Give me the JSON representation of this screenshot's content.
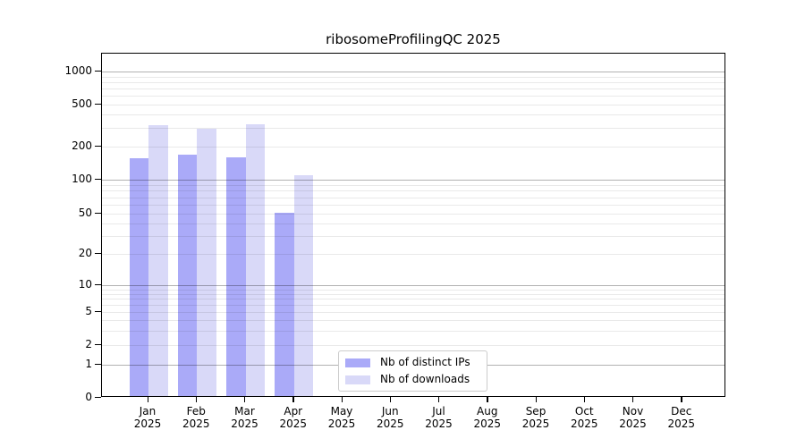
{
  "chart_data": {
    "type": "bar",
    "title": "ribosomeProfilingQC 2025",
    "categories": [
      "Jan",
      "Feb",
      "Mar",
      "Apr",
      "May",
      "Jun",
      "Jul",
      "Aug",
      "Sep",
      "Oct",
      "Nov",
      "Dec"
    ],
    "year_label": "2025",
    "series": [
      {
        "name": "Nb of distinct IPs",
        "color": "#aaaaf8",
        "values": [
          150,
          163,
          154,
          49,
          null,
          null,
          null,
          null,
          null,
          null,
          null,
          null
        ]
      },
      {
        "name": "Nb of downloads",
        "color": "#d9d9f8",
        "values": [
          305,
          285,
          313,
          105,
          null,
          null,
          null,
          null,
          null,
          null,
          null,
          null
        ]
      }
    ],
    "y_axis": {
      "scale": "log-like (symlog with 0)",
      "tick_labels": [
        "0",
        "1",
        "2",
        "5",
        "10",
        "20",
        "50",
        "100",
        "200",
        "500",
        "1000"
      ],
      "tick_values": [
        0,
        1,
        2,
        5,
        10,
        20,
        50,
        100,
        200,
        500,
        1000
      ],
      "minor_gridline_values": [
        3,
        4,
        6,
        7,
        8,
        9,
        30,
        40,
        60,
        70,
        80,
        90,
        300,
        400,
        600,
        700,
        800,
        900
      ],
      "decade_values": [
        1,
        10,
        100,
        1000
      ],
      "ylim_top": 1450
    },
    "legend_position": "lower center",
    "grid": true,
    "colors": {
      "major_gridline": "#b3b3b3",
      "minor_gridline": "#e8e8e8",
      "spine": "#000000",
      "background": "#ffffff"
    }
  }
}
